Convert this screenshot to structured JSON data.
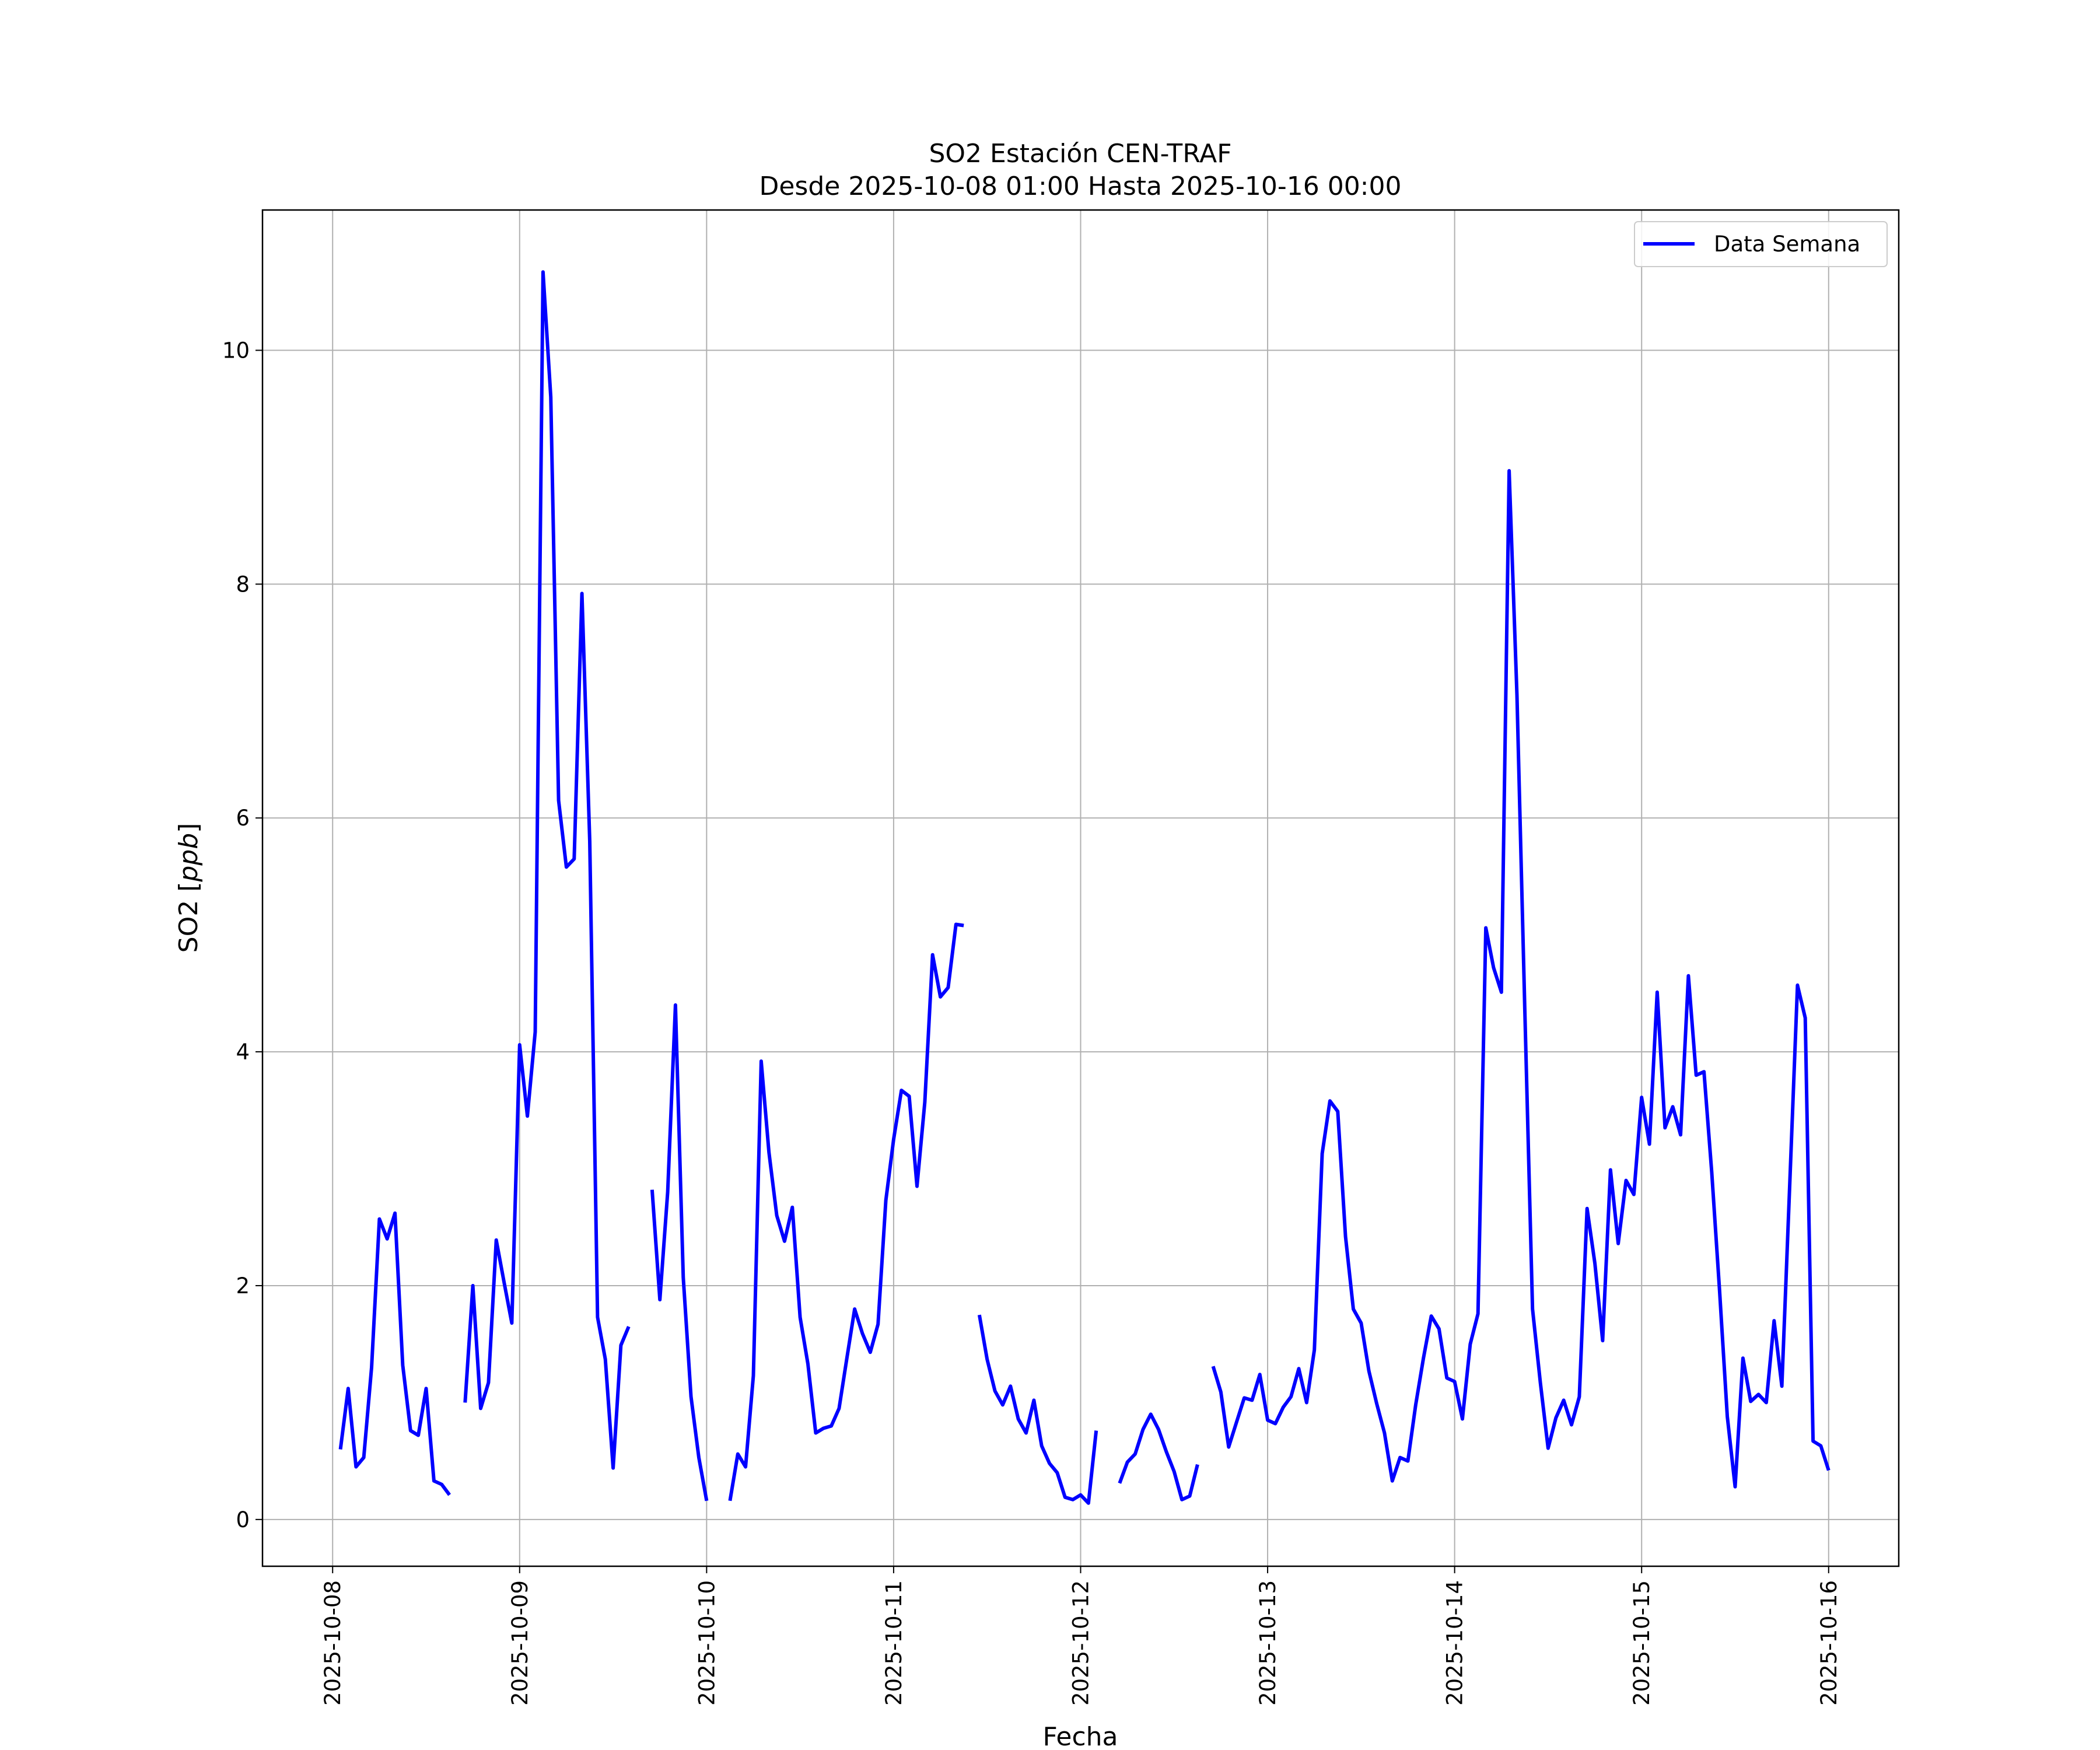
{
  "chart_data": {
    "type": "line",
    "title": "SO2 Estación CEN-TRAF",
    "subtitle": "Desde 2025-10-08 01:00 Hasta 2025-10-16 00:00",
    "xlabel": "Fecha",
    "ylabel": "SO2 [ppb]",
    "ylabel_prefix": "SO2 [",
    "ylabel_unit": "ppb",
    "ylabel_suffix": "]",
    "xlim": [
      "2025-10-07 15:00",
      "2025-10-16 09:00"
    ],
    "ylim": [
      -0.4,
      11.2
    ],
    "y_ticks": [
      0,
      2,
      4,
      6,
      8,
      10
    ],
    "x_ticks": [
      "2025-10-08",
      "2025-10-09",
      "2025-10-10",
      "2025-10-11",
      "2025-10-12",
      "2025-10-13",
      "2025-10-14",
      "2025-10-15",
      "2025-10-16"
    ],
    "grid": true,
    "legend": "top-right",
    "series": [
      {
        "name": "Data Semana",
        "color": "#0000ff",
        "segments": [
          {
            "start": "2025-10-08 01:00",
            "values": [
              0.6,
              1.12,
              0.45,
              0.53,
              1.3,
              2.57,
              2.4,
              2.62,
              1.32,
              0.76,
              0.72,
              1.12,
              0.33,
              0.3,
              0.21
            ]
          },
          {
            "start": "2025-10-08 17:00",
            "values": [
              1.0,
              2.0,
              0.95,
              1.17,
              2.39,
              2.03,
              1.68,
              4.06,
              3.45,
              4.17,
              10.67,
              9.6,
              6.15,
              5.58,
              5.65,
              7.92,
              5.8,
              1.73,
              1.37,
              0.44,
              1.49,
              1.65
            ]
          },
          {
            "start": "2025-10-09 17:00",
            "values": [
              2.82,
              1.88,
              2.8,
              4.4,
              2.07,
              1.05,
              0.53,
              0.16
            ]
          },
          {
            "start": "2025-10-10 03:00",
            "values": [
              0.16,
              0.56,
              0.45,
              1.23,
              3.92,
              3.14,
              2.6,
              2.38,
              2.67,
              1.73,
              1.33,
              0.74,
              0.78,
              0.8,
              0.95,
              1.38,
              1.8,
              1.59,
              1.43,
              1.67,
              2.73,
              3.25,
              3.67,
              3.62,
              2.85,
              3.57,
              4.83,
              4.47,
              4.55,
              5.09,
              5.08
            ]
          },
          {
            "start": "2025-10-11 11:00",
            "values": [
              1.75,
              1.37,
              1.1,
              0.98,
              1.14,
              0.86,
              0.74,
              1.02,
              0.63,
              0.48,
              0.4,
              0.19,
              0.17,
              0.21,
              0.14,
              0.76
            ]
          },
          {
            "start": "2025-10-12 05:00",
            "values": [
              0.31,
              0.49,
              0.56,
              0.77,
              0.9,
              0.77,
              0.58,
              0.41,
              0.17,
              0.2,
              0.47
            ]
          },
          {
            "start": "2025-10-12 17:00",
            "values": [
              1.31,
              1.09,
              0.62,
              0.83,
              1.04,
              1.02,
              1.24,
              0.85,
              0.82,
              0.96,
              1.05,
              1.29,
              1.0,
              1.45,
              3.13,
              3.58,
              3.49,
              2.42,
              1.8,
              1.68,
              1.27,
              0.99,
              0.74,
              0.33,
              0.53,
              0.5,
              0.98,
              1.38,
              1.74,
              1.63,
              1.21,
              1.18,
              0.86,
              1.5,
              1.76,
              5.06,
              4.72,
              4.51,
              8.97,
              7.05,
              4.37,
              1.8,
              1.17,
              0.61,
              0.87,
              1.02,
              0.81,
              1.05,
              2.66,
              2.19,
              1.53,
              2.99,
              2.36,
              2.9,
              2.78,
              3.61,
              3.21,
              4.51,
              3.35,
              3.53,
              3.29,
              4.65,
              3.8,
              3.83,
              2.97,
              1.96,
              0.88,
              0.28,
              1.38,
              1.01,
              1.07,
              1.0,
              1.7,
              1.14,
              2.85,
              4.57,
              4.29,
              0.67,
              0.63,
              0.42
            ]
          }
        ]
      }
    ]
  }
}
